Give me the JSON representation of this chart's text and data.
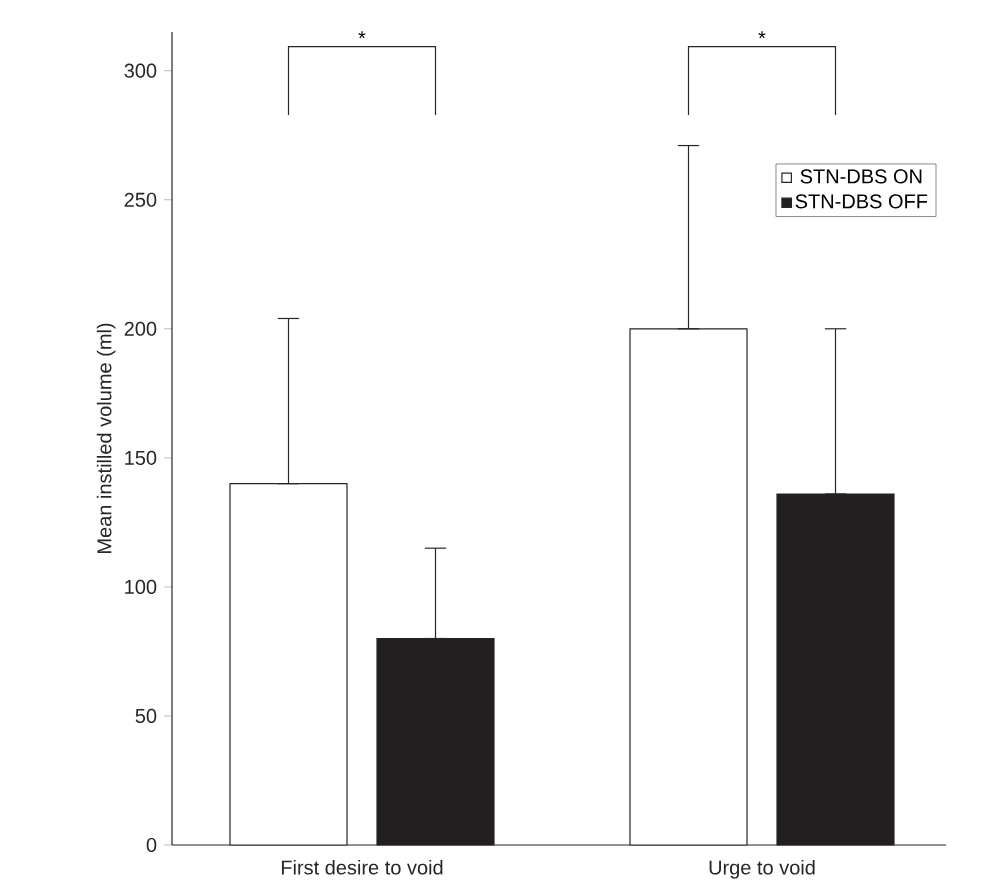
{
  "chart_data": {
    "type": "bar",
    "ylabel": "Mean instilled volume (ml)",
    "categories": [
      "First desire to void",
      "Urge to void"
    ],
    "series": [
      {
        "name": "STN-DBS ON",
        "color": "#ffffff",
        "values": [
          140,
          200
        ],
        "errors": [
          [
            140,
            204
          ],
          [
            200,
            271
          ]
        ]
      },
      {
        "name": "STN-DBS OFF",
        "color": "#231f20",
        "values": [
          80,
          136
        ],
        "errors": [
          [
            80,
            115
          ],
          [
            136,
            200
          ]
        ]
      }
    ],
    "ylim": [
      0,
      315
    ],
    "yticks": [
      0,
      50,
      100,
      150,
      200,
      250,
      300
    ],
    "annotations": [
      "*",
      "*"
    ],
    "legend": "top right",
    "grid": false
  }
}
